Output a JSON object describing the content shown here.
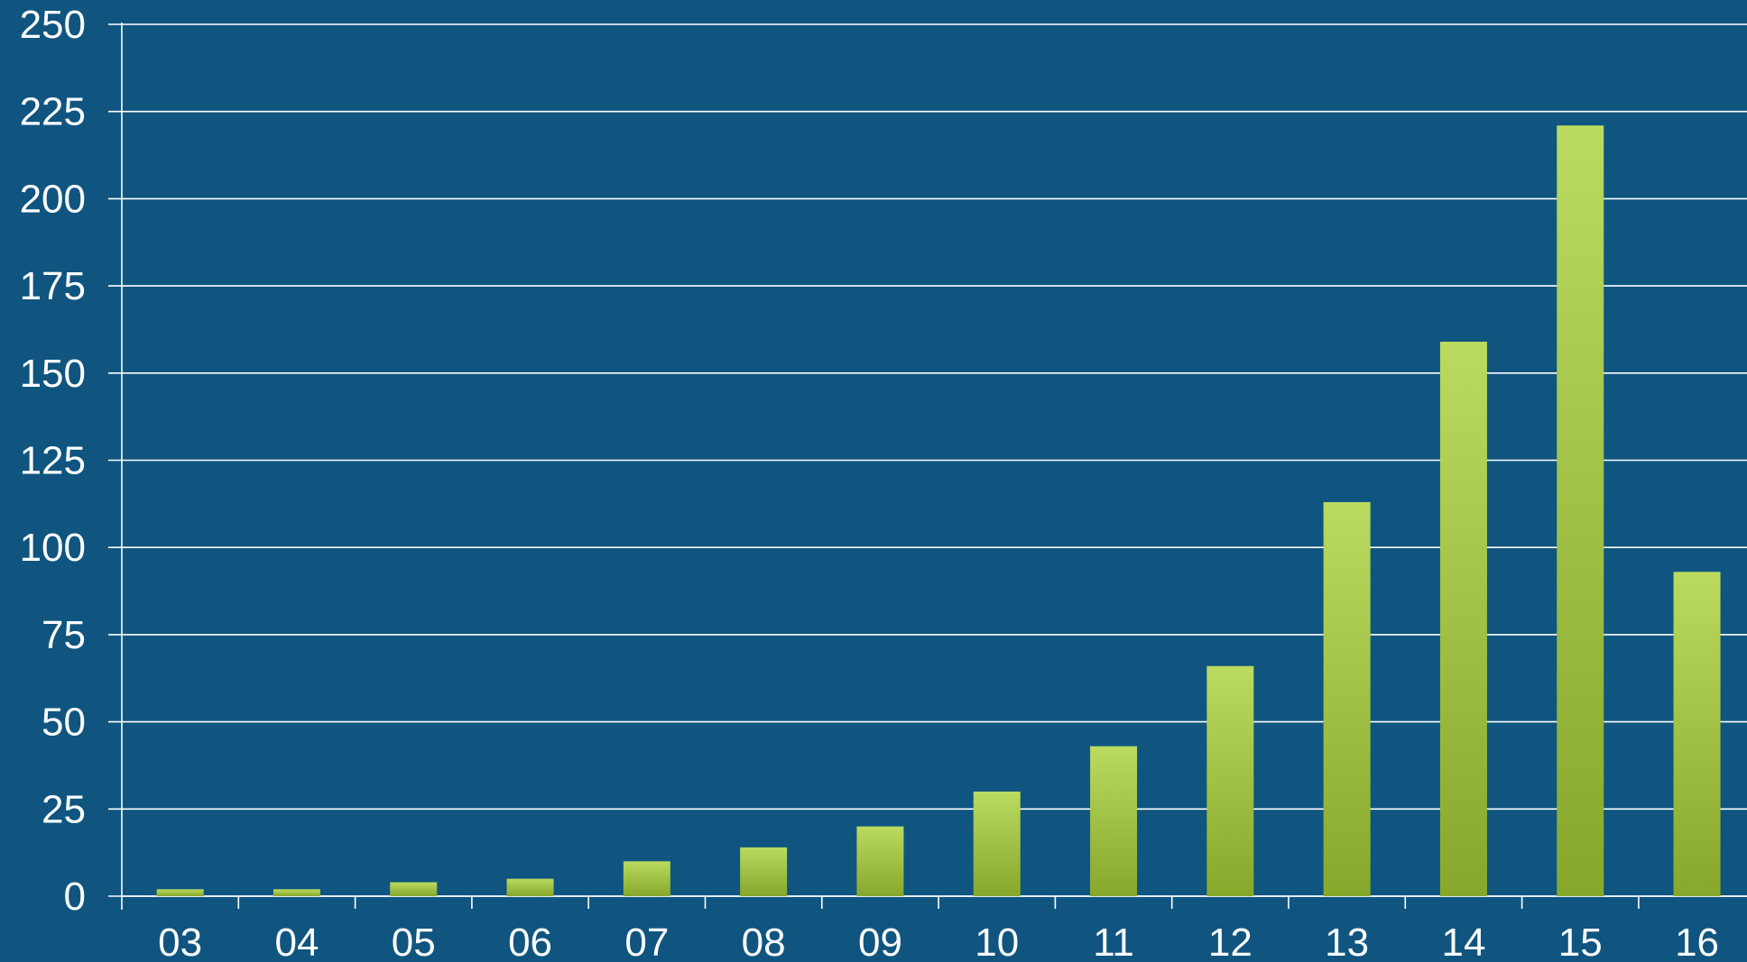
{
  "chart_data": {
    "type": "bar",
    "title": "",
    "xlabel": "",
    "ylabel": "",
    "categories": [
      "03",
      "04",
      "05",
      "06",
      "07",
      "08",
      "09",
      "10",
      "11",
      "12",
      "13",
      "14",
      "15",
      "16"
    ],
    "values": [
      2,
      2,
      4,
      5,
      10,
      14,
      20,
      30,
      43,
      66,
      113,
      159,
      221,
      93
    ],
    "ylim": [
      0,
      250
    ],
    "yticks": [
      "0",
      "25",
      "50",
      "75",
      "100",
      "125",
      "150",
      "175",
      "200",
      "225",
      "250"
    ],
    "grid": true,
    "legend": "none",
    "colors": {
      "background": "#0f5580",
      "grid": "#ffffff",
      "bar_top": "#bada60",
      "bar_bottom": "#88a82c",
      "text": "#ffffff"
    }
  }
}
